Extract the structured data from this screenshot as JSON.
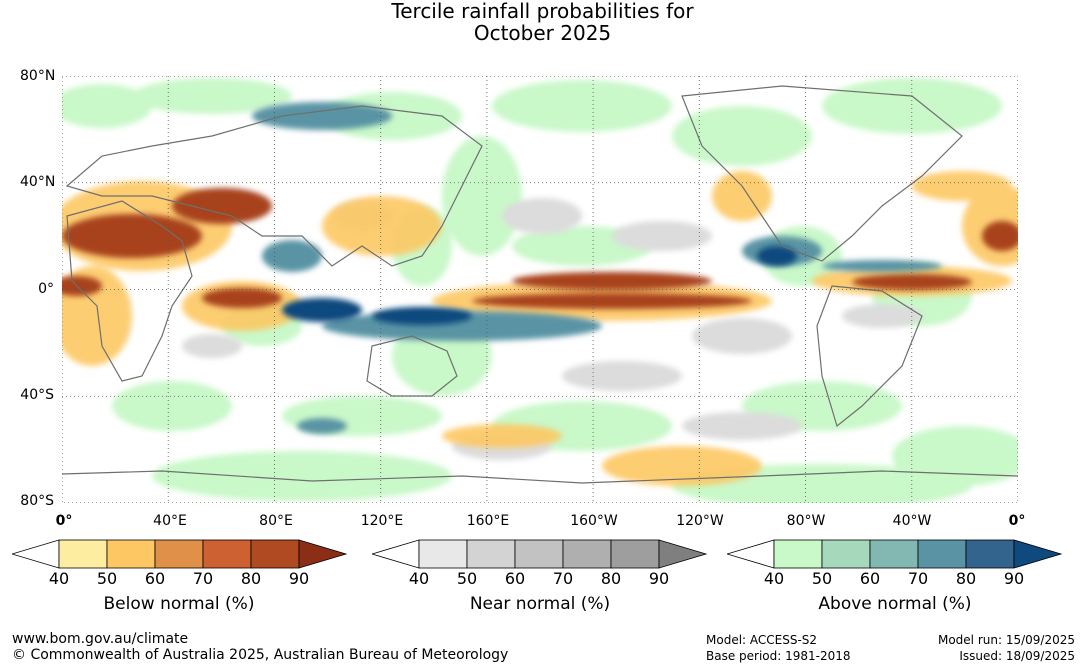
{
  "title": {
    "line1": "Tercile rainfall probabilities for",
    "line2": "October 2025"
  },
  "map": {
    "lat_labels": [
      "80°N",
      "40°N",
      "0°",
      "40°S",
      "80°S"
    ],
    "lon_labels": [
      "0°",
      "40°E",
      "80°E",
      "120°E",
      "160°E",
      "160°W",
      "120°W",
      "80°W",
      "40°W",
      "0°"
    ],
    "lat_range": [
      -80,
      80
    ],
    "lon_range_deg_east": [
      0,
      360
    ],
    "gridlines": true
  },
  "legend": {
    "below": {
      "title": "Below normal (%)",
      "ticks": [
        "40",
        "50",
        "60",
        "70",
        "80",
        "90"
      ],
      "colors": [
        "#ffffff",
        "#fdeda0",
        "#fdc863",
        "#e09048",
        "#cd6131",
        "#b04a22",
        "#8c2d16"
      ]
    },
    "near": {
      "title": "Near normal (%)",
      "ticks": [
        "40",
        "50",
        "60",
        "70",
        "80",
        "90"
      ],
      "colors": [
        "#ffffff",
        "#e8e8e8",
        "#d3d3d3",
        "#c2c2c2",
        "#afafaf",
        "#9e9e9e",
        "#7f7f7f"
      ]
    },
    "above": {
      "title": "Above normal (%)",
      "ticks": [
        "40",
        "50",
        "60",
        "70",
        "80",
        "90"
      ],
      "colors": [
        "#ffffff",
        "#c9f8c9",
        "#a6d9bc",
        "#82b8b1",
        "#5a94a4",
        "#32648e",
        "#0f4a7e"
      ]
    }
  },
  "footer": {
    "url": "www.bom.gov.au/climate",
    "copyright": "© Commonwealth of Australia 2025, Australian Bureau of Meteorology",
    "model": "Model: ACCESS-S2",
    "base_period": "Base period: 1981-2018",
    "model_run": "Model run: 15/09/2025",
    "issued": "Issued: 18/09/2025"
  }
}
